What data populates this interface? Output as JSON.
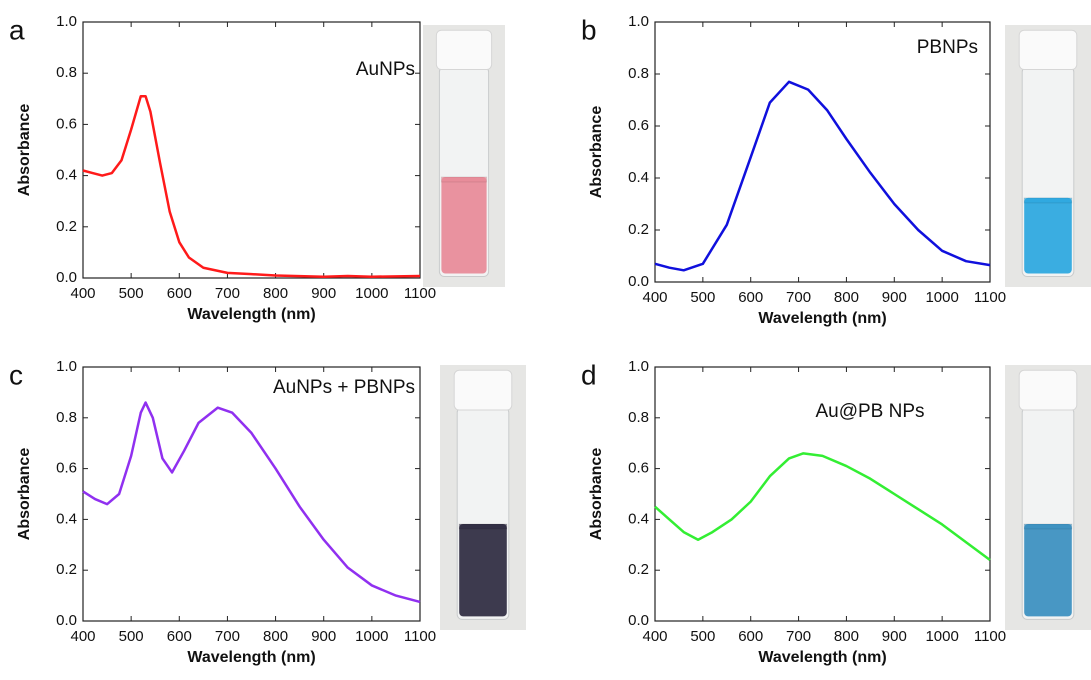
{
  "chart_data": [
    {
      "type": "line",
      "label": "a",
      "annotation": "AuNPs",
      "xlabel": "Wavelength (nm)",
      "ylabel": "Absorbance",
      "color": "#ff1a1a",
      "xlim": [
        400,
        1100
      ],
      "ylim": [
        0,
        1.0
      ],
      "xticks": [
        400,
        500,
        600,
        700,
        800,
        900,
        1000,
        1100
      ],
      "yticks": [
        {
          "value": 0,
          "label": "0.0"
        },
        0.2,
        0.4,
        0.6,
        0.8,
        {
          "value": 1.0,
          "label": "1.0"
        }
      ],
      "x": [
        400,
        420,
        440,
        460,
        480,
        500,
        520,
        530,
        540,
        560,
        580,
        600,
        620,
        650,
        700,
        750,
        800,
        900,
        950,
        1000,
        1100
      ],
      "values": [
        0.42,
        0.41,
        0.4,
        0.41,
        0.46,
        0.58,
        0.71,
        0.71,
        0.65,
        0.45,
        0.26,
        0.14,
        0.08,
        0.04,
        0.02,
        0.015,
        0.01,
        0.005,
        0.008,
        0.005,
        0.008
      ]
    },
    {
      "type": "line",
      "label": "b",
      "annotation": "PBNPs",
      "xlabel": "Wavelength (nm)",
      "ylabel": "Absorbance",
      "color": "#1010dd",
      "xlim": [
        400,
        1100
      ],
      "ylim": [
        0,
        1.0
      ],
      "xticks": [
        400,
        500,
        600,
        700,
        800,
        900,
        1000,
        1100
      ],
      "yticks": [
        {
          "value": 0,
          "label": "0.0"
        },
        0.2,
        0.4,
        0.6,
        0.8,
        {
          "value": 1.0,
          "label": "1.0"
        }
      ],
      "x": [
        400,
        430,
        460,
        500,
        550,
        600,
        640,
        680,
        720,
        760,
        800,
        850,
        900,
        950,
        1000,
        1050,
        1100
      ],
      "values": [
        0.07,
        0.055,
        0.045,
        0.07,
        0.22,
        0.48,
        0.69,
        0.77,
        0.74,
        0.66,
        0.55,
        0.42,
        0.3,
        0.2,
        0.12,
        0.08,
        0.065
      ]
    },
    {
      "type": "line",
      "label": "c",
      "annotation": "AuNPs + PBNPs",
      "xlabel": "Wavelength (nm)",
      "ylabel": "Absorbance",
      "color": "#9030f0",
      "xlim": [
        400,
        1100
      ],
      "ylim": [
        0,
        1.0
      ],
      "xticks": [
        400,
        500,
        600,
        700,
        800,
        900,
        1000,
        1100
      ],
      "yticks": [
        {
          "value": 0,
          "label": "0.0"
        },
        0.2,
        0.4,
        0.6,
        0.8,
        {
          "value": 1.0,
          "label": "1.0"
        }
      ],
      "x": [
        400,
        425,
        450,
        475,
        500,
        520,
        530,
        545,
        565,
        585,
        610,
        640,
        680,
        710,
        750,
        800,
        850,
        900,
        950,
        1000,
        1050,
        1100
      ],
      "values": [
        0.51,
        0.48,
        0.46,
        0.5,
        0.65,
        0.82,
        0.86,
        0.8,
        0.64,
        0.585,
        0.67,
        0.78,
        0.84,
        0.82,
        0.74,
        0.6,
        0.45,
        0.32,
        0.21,
        0.14,
        0.1,
        0.075
      ]
    },
    {
      "type": "line",
      "label": "d",
      "annotation": "Au@PB NPs",
      "xlabel": "Wavelength (nm)",
      "ylabel": "Absorbance",
      "color": "#33ee33",
      "xlim": [
        400,
        1100
      ],
      "ylim": [
        0,
        1.0
      ],
      "xticks": [
        400,
        500,
        600,
        700,
        800,
        900,
        1000,
        1100
      ],
      "yticks": [
        {
          "value": 0,
          "label": "0.0"
        },
        0.2,
        0.4,
        0.6,
        0.8,
        {
          "value": 1.0,
          "label": "1.0"
        }
      ],
      "x": [
        400,
        430,
        460,
        490,
        520,
        560,
        600,
        640,
        680,
        710,
        750,
        800,
        850,
        900,
        950,
        1000,
        1050,
        1100
      ],
      "values": [
        0.45,
        0.4,
        0.35,
        0.32,
        0.35,
        0.4,
        0.47,
        0.57,
        0.64,
        0.66,
        0.65,
        0.61,
        0.56,
        0.5,
        0.44,
        0.38,
        0.31,
        0.24
      ]
    }
  ]
}
